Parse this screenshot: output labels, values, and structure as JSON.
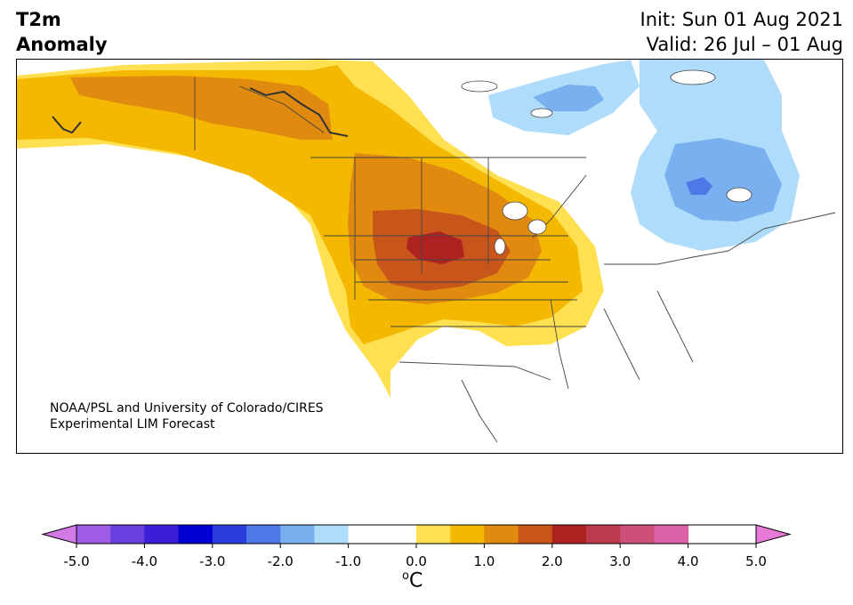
{
  "title": {
    "left_line1": "T2m",
    "left_line2": "Anomaly",
    "right_line1": "Init: Sun 01 Aug 2021",
    "right_line2": "Valid: 26 Jul – 01 Aug"
  },
  "credit": {
    "line1": "NOAA/PSL and University of Colorado/CIRES",
    "line2": "Experimental LIM Forecast"
  },
  "colorbar": {
    "unit_base": "C",
    "unit_sup": "o",
    "ticks": [
      "-5.0",
      "-4.0",
      "-3.0",
      "-2.0",
      "-1.0",
      "0.0",
      "1.0",
      "2.0",
      "3.0",
      "4.0",
      "5.0"
    ],
    "tick_values": [
      -5,
      -4,
      -3,
      -2,
      -1,
      0,
      1,
      2,
      3,
      4,
      5
    ],
    "min": -5,
    "max": 5,
    "step": 0.5,
    "colors": [
      "#9e5ce6",
      "#6a3fe0",
      "#3a1fd6",
      "#0000d2",
      "#2a3ede",
      "#4d78e6",
      "#78b0f0",
      "#aedcfa",
      "#ffffff",
      "#ffffff",
      "#ffe050",
      "#f4b800",
      "#e08a10",
      "#c8561a",
      "#ae2222",
      "#bc3a4e",
      "#cc4f78",
      "#dc62a8"
    ],
    "extend_low_color": "#d27ae6",
    "extend_high_color": "#e67ad6"
  },
  "map": {
    "land_color": "#ffffff",
    "border_color": "#444444",
    "anomaly_colors": {
      "p05": "#ffe050",
      "p10": "#f4b800",
      "p15": "#e08a10",
      "p20": "#c8561a",
      "p25": "#ae2222",
      "m05": "#aedcfa",
      "m10": "#78b0f0",
      "m15": "#4d78e6"
    }
  }
}
